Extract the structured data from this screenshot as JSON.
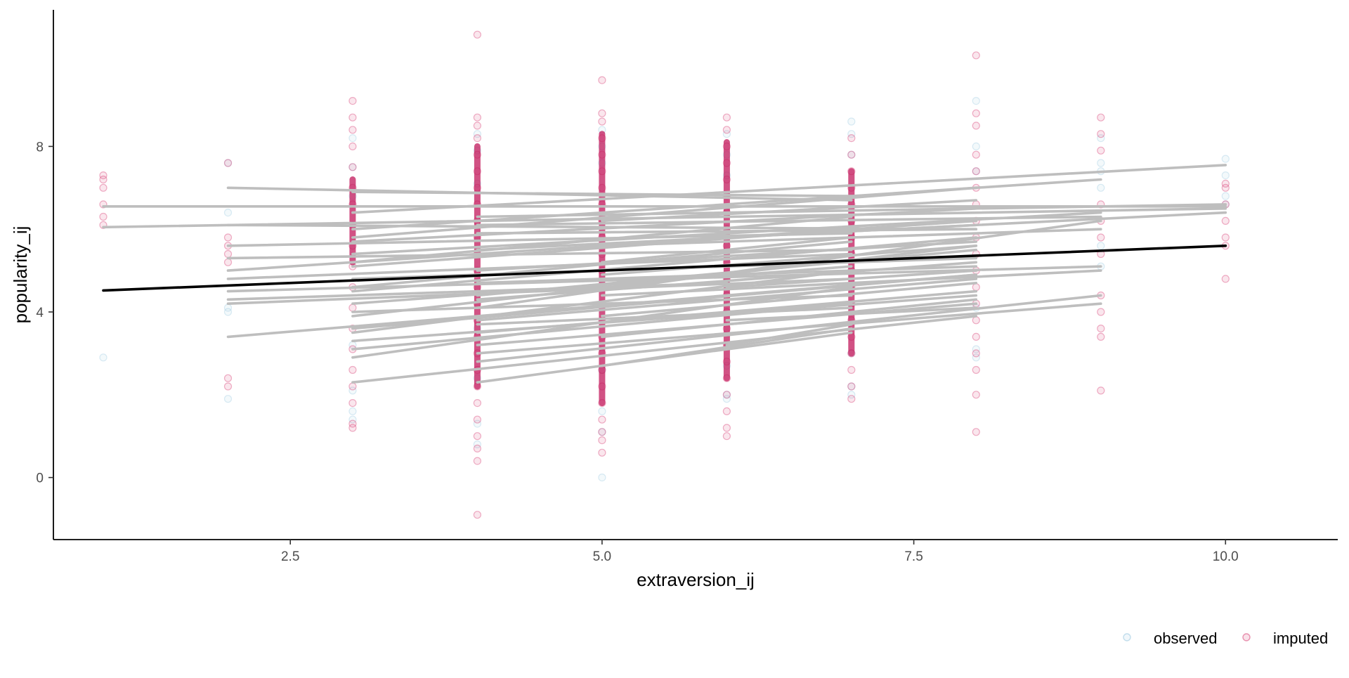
{
  "chart_data": {
    "type": "scatter",
    "title": "",
    "xlabel": "extraversion_ij",
    "ylabel": "popularity_ij",
    "xlim": [
      0.6,
      10.9
    ],
    "ylim": [
      -1.5,
      11.3
    ],
    "x_ticks": [
      2.5,
      5.0,
      7.5,
      10.0
    ],
    "x_tick_labels": [
      "2.5",
      "5.0",
      "7.5",
      "10.0"
    ],
    "y_ticks": [
      0,
      4,
      8
    ],
    "y_tick_labels": [
      "0",
      "4",
      "8"
    ],
    "grid": false,
    "legend": {
      "position": "bottom-right",
      "entries": [
        {
          "label": "observed",
          "color": "#9ecae1"
        },
        {
          "label": "imputed",
          "color": "#d6336c"
        }
      ]
    },
    "colors": {
      "observed": "#9ecae1",
      "imputed": "#d6336c",
      "group_lines": "#bebebe",
      "fixed_line": "#000000"
    },
    "series": [
      {
        "name": "observed",
        "points": [
          [
            1,
            2.9
          ],
          [
            2,
            7.6
          ],
          [
            2,
            6.4
          ],
          [
            2,
            4.0
          ],
          [
            2,
            1.9
          ],
          [
            2,
            4.1
          ],
          [
            3,
            8.2
          ],
          [
            3,
            7.5
          ],
          [
            3,
            6.8
          ],
          [
            3,
            1.6
          ],
          [
            3,
            1.4
          ],
          [
            3,
            2.1
          ],
          [
            3,
            3.2
          ],
          [
            4,
            8.3
          ],
          [
            4,
            7.9
          ],
          [
            4,
            7.1
          ],
          [
            4,
            1.3
          ],
          [
            4,
            0.8
          ],
          [
            4,
            2.4
          ],
          [
            4,
            3.6
          ],
          [
            5,
            0.0
          ],
          [
            5,
            1.1
          ],
          [
            5,
            8.4
          ],
          [
            5,
            8.0
          ],
          [
            5,
            7.6
          ],
          [
            5,
            1.6
          ],
          [
            5,
            2.6
          ],
          [
            6,
            8.3
          ],
          [
            6,
            7.8
          ],
          [
            6,
            7.3
          ],
          [
            6,
            2.0
          ],
          [
            6,
            1.9
          ],
          [
            6,
            2.7
          ],
          [
            7,
            8.6
          ],
          [
            7,
            8.3
          ],
          [
            7,
            7.8
          ],
          [
            7,
            2.2
          ],
          [
            7,
            2.0
          ],
          [
            7,
            3.0
          ],
          [
            8,
            9.1
          ],
          [
            8,
            8.0
          ],
          [
            8,
            7.4
          ],
          [
            8,
            4.1
          ],
          [
            8,
            2.9
          ],
          [
            8,
            3.1
          ],
          [
            9,
            8.2
          ],
          [
            9,
            7.6
          ],
          [
            9,
            7.4
          ],
          [
            9,
            7.0
          ],
          [
            9,
            5.6
          ],
          [
            9,
            5.1
          ],
          [
            10,
            7.7
          ],
          [
            10,
            7.3
          ],
          [
            10,
            6.8
          ],
          [
            10,
            6.6
          ]
        ]
      },
      {
        "name": "imputed",
        "points": [
          [
            1,
            7.3
          ],
          [
            1,
            7.2
          ],
          [
            1,
            7.0
          ],
          [
            1,
            6.6
          ],
          [
            1,
            6.3
          ],
          [
            1,
            6.1
          ],
          [
            2,
            7.6
          ],
          [
            2,
            5.8
          ],
          [
            2,
            5.6
          ],
          [
            2,
            5.4
          ],
          [
            2,
            5.2
          ],
          [
            2,
            2.4
          ],
          [
            2,
            2.2
          ],
          [
            3,
            9.1
          ],
          [
            3,
            8.7
          ],
          [
            3,
            8.4
          ],
          [
            3,
            8.0
          ],
          [
            3,
            7.5
          ],
          [
            3,
            7.0
          ],
          [
            3,
            6.6
          ],
          [
            3,
            6.1
          ],
          [
            3,
            5.6
          ],
          [
            3,
            5.1
          ],
          [
            3,
            4.6
          ],
          [
            3,
            4.1
          ],
          [
            3,
            3.6
          ],
          [
            3,
            3.1
          ],
          [
            3,
            2.6
          ],
          [
            3,
            2.2
          ],
          [
            3,
            1.8
          ],
          [
            3,
            1.3
          ],
          [
            3,
            1.2
          ],
          [
            4,
            8.7
          ],
          [
            4,
            8.5
          ],
          [
            4,
            8.2
          ],
          [
            4,
            7.8
          ],
          [
            4,
            7.4
          ],
          [
            4,
            7.0
          ],
          [
            4,
            6.6
          ],
          [
            4,
            6.2
          ],
          [
            4,
            5.8
          ],
          [
            4,
            5.4
          ],
          [
            4,
            5.0
          ],
          [
            4,
            4.6
          ],
          [
            4,
            4.2
          ],
          [
            4,
            3.8
          ],
          [
            4,
            3.4
          ],
          [
            4,
            3.0
          ],
          [
            4,
            2.6
          ],
          [
            4,
            2.2
          ],
          [
            4,
            1.8
          ],
          [
            4,
            1.4
          ],
          [
            4,
            1.0
          ],
          [
            4,
            0.7
          ],
          [
            4,
            0.4
          ],
          [
            4,
            10.7
          ],
          [
            4,
            -0.9
          ],
          [
            5,
            9.6
          ],
          [
            5,
            8.8
          ],
          [
            5,
            8.6
          ],
          [
            5,
            8.2
          ],
          [
            5,
            7.8
          ],
          [
            5,
            7.4
          ],
          [
            5,
            7.0
          ],
          [
            5,
            6.6
          ],
          [
            5,
            6.2
          ],
          [
            5,
            5.8
          ],
          [
            5,
            5.4
          ],
          [
            5,
            5.0
          ],
          [
            5,
            4.6
          ],
          [
            5,
            4.2
          ],
          [
            5,
            3.8
          ],
          [
            5,
            3.4
          ],
          [
            5,
            3.0
          ],
          [
            5,
            2.6
          ],
          [
            5,
            2.2
          ],
          [
            5,
            1.8
          ],
          [
            5,
            1.4
          ],
          [
            5,
            1.1
          ],
          [
            5,
            0.9
          ],
          [
            5,
            0.6
          ],
          [
            6,
            8.7
          ],
          [
            6,
            8.4
          ],
          [
            6,
            8.0
          ],
          [
            6,
            7.6
          ],
          [
            6,
            7.2
          ],
          [
            6,
            6.8
          ],
          [
            6,
            6.4
          ],
          [
            6,
            6.0
          ],
          [
            6,
            5.6
          ],
          [
            6,
            5.2
          ],
          [
            6,
            4.8
          ],
          [
            6,
            4.4
          ],
          [
            6,
            4.0
          ],
          [
            6,
            3.6
          ],
          [
            6,
            3.2
          ],
          [
            6,
            2.8
          ],
          [
            6,
            2.4
          ],
          [
            6,
            2.0
          ],
          [
            6,
            1.6
          ],
          [
            6,
            1.2
          ],
          [
            6,
            1.0
          ],
          [
            7,
            8.2
          ],
          [
            7,
            7.8
          ],
          [
            7,
            7.4
          ],
          [
            7,
            7.0
          ],
          [
            7,
            6.6
          ],
          [
            7,
            6.2
          ],
          [
            7,
            5.8
          ],
          [
            7,
            5.4
          ],
          [
            7,
            5.0
          ],
          [
            7,
            4.6
          ],
          [
            7,
            4.2
          ],
          [
            7,
            3.8
          ],
          [
            7,
            3.4
          ],
          [
            7,
            3.0
          ],
          [
            7,
            2.6
          ],
          [
            7,
            2.2
          ],
          [
            7,
            1.9
          ],
          [
            8,
            10.2
          ],
          [
            8,
            8.8
          ],
          [
            8,
            8.5
          ],
          [
            8,
            7.8
          ],
          [
            8,
            7.4
          ],
          [
            8,
            7.0
          ],
          [
            8,
            6.6
          ],
          [
            8,
            6.2
          ],
          [
            8,
            5.8
          ],
          [
            8,
            5.4
          ],
          [
            8,
            5.0
          ],
          [
            8,
            4.6
          ],
          [
            8,
            4.2
          ],
          [
            8,
            3.8
          ],
          [
            8,
            3.4
          ],
          [
            8,
            3.0
          ],
          [
            8,
            2.6
          ],
          [
            8,
            2.0
          ],
          [
            8,
            1.1
          ],
          [
            9,
            8.7
          ],
          [
            9,
            8.3
          ],
          [
            9,
            7.9
          ],
          [
            9,
            6.6
          ],
          [
            9,
            6.2
          ],
          [
            9,
            5.8
          ],
          [
            9,
            5.4
          ],
          [
            9,
            4.4
          ],
          [
            9,
            4.0
          ],
          [
            9,
            3.6
          ],
          [
            9,
            3.4
          ],
          [
            9,
            2.1
          ],
          [
            10,
            7.1
          ],
          [
            10,
            7.0
          ],
          [
            10,
            6.6
          ],
          [
            10,
            6.2
          ],
          [
            10,
            5.8
          ],
          [
            10,
            5.6
          ],
          [
            10,
            4.8
          ]
        ]
      }
    ],
    "group_lines": [
      [
        1,
        6.55,
        10,
        6.55
      ],
      [
        1,
        6.05,
        10,
        6.5
      ],
      [
        2,
        7.0,
        7,
        6.7
      ],
      [
        2,
        6.1,
        8,
        6.0
      ],
      [
        2,
        3.4,
        8,
        4.9
      ],
      [
        2,
        4.2,
        7,
        4.8
      ],
      [
        2,
        4.5,
        9,
        5.1
      ],
      [
        2,
        5.3,
        7,
        5.5
      ],
      [
        2,
        5.0,
        8,
        6.2
      ],
      [
        2,
        4.8,
        7,
        5.4
      ],
      [
        2,
        4.3,
        6,
        4.7
      ],
      [
        2,
        5.6,
        7,
        5.9
      ],
      [
        3,
        6.9,
        7,
        6.8
      ],
      [
        3,
        6.4,
        10,
        7.55
      ],
      [
        3,
        6.0,
        9,
        7.2
      ],
      [
        3,
        5.7,
        8,
        6.5
      ],
      [
        3,
        5.4,
        9,
        6.4
      ],
      [
        3,
        5.1,
        7,
        6.0
      ],
      [
        3,
        4.8,
        8,
        5.3
      ],
      [
        3,
        4.5,
        8,
        5.8
      ],
      [
        3,
        4.2,
        7,
        5.1
      ],
      [
        3,
        3.9,
        8,
        5.6
      ],
      [
        3,
        3.6,
        8,
        4.9
      ],
      [
        3,
        3.3,
        8,
        4.4
      ],
      [
        3,
        3.1,
        7,
        4.2
      ],
      [
        3,
        2.3,
        8,
        3.9
      ],
      [
        3,
        2.9,
        7,
        4.6
      ],
      [
        3,
        3.5,
        7,
        5.0
      ],
      [
        3,
        4.0,
        7,
        4.4
      ],
      [
        3,
        4.6,
        7,
        5.7
      ],
      [
        3,
        5.2,
        7,
        6.3
      ],
      [
        3,
        5.8,
        8,
        7.0
      ],
      [
        4,
        6.3,
        10,
        6.6
      ],
      [
        4,
        6.1,
        9,
        6.3
      ],
      [
        4,
        5.9,
        8,
        6.0
      ],
      [
        4,
        5.5,
        10,
        6.4
      ],
      [
        4,
        5.0,
        8,
        5.7
      ],
      [
        4,
        4.7,
        8,
        5.1
      ],
      [
        4,
        4.4,
        8,
        5.5
      ],
      [
        4,
        4.1,
        9,
        6.2
      ],
      [
        4,
        3.8,
        8,
        4.8
      ],
      [
        4,
        3.5,
        8,
        4.5
      ],
      [
        4,
        3.2,
        8,
        4.2
      ],
      [
        4,
        2.8,
        9,
        4.4
      ],
      [
        4,
        2.3,
        7,
        3.5
      ],
      [
        4,
        3.0,
        9,
        4.2
      ],
      [
        4,
        3.7,
        7,
        4.1
      ],
      [
        4,
        4.3,
        8,
        5.2
      ],
      [
        5,
        6.2,
        8,
        6.7
      ],
      [
        5,
        5.6,
        9,
        6.0
      ],
      [
        5,
        4.9,
        8,
        5.6
      ],
      [
        5,
        4.4,
        9,
        5.0
      ],
      [
        5,
        3.9,
        8,
        4.7
      ],
      [
        5,
        3.4,
        8,
        4.3
      ],
      [
        5,
        2.7,
        7,
        3.6
      ],
      [
        5,
        5.2,
        7,
        5.8
      ],
      [
        6,
        5.8,
        8,
        6.1
      ],
      [
        6,
        4.6,
        8,
        5.0
      ],
      [
        6,
        3.8,
        8,
        4.1
      ],
      [
        6,
        3.2,
        7,
        3.7
      ]
    ],
    "fixed_effect_line": [
      [
        1,
        4.52
      ],
      [
        10,
        5.6
      ]
    ]
  }
}
